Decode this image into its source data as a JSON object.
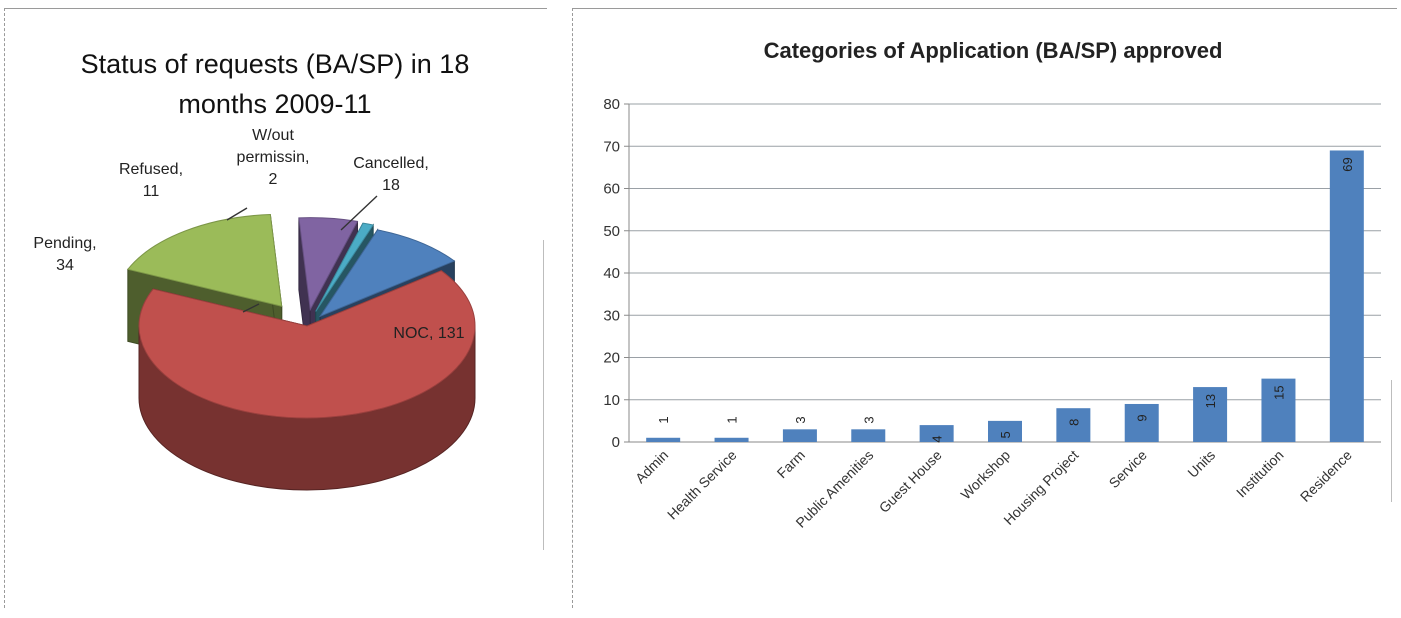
{
  "chart_data": [
    {
      "type": "pie",
      "title": "Status of requests (BA/SP) in 18 months 2009-11",
      "title_lines": [
        "Status of requests (BA/SP) in 18",
        "months 2009-11"
      ],
      "slices": [
        {
          "name": "Cancelled",
          "value": 18,
          "label": [
            "Cancelled,",
            "18"
          ],
          "color": "#4f81bd"
        },
        {
          "name": "NOC",
          "value": 131,
          "label": [
            "NOC, 131"
          ],
          "color": "#c0504d"
        },
        {
          "name": "Pending",
          "value": 34,
          "label": [
            "Pending,",
            "34"
          ],
          "color": "#9bbb59"
        },
        {
          "name": "Refused",
          "value": 11,
          "label": [
            "Refused,",
            "11"
          ],
          "color": "#8064a2"
        },
        {
          "name": "W/out permissin",
          "value": 2,
          "label": [
            "W/out",
            "permissin,",
            "2"
          ],
          "color": "#4bacc6"
        }
      ]
    },
    {
      "type": "bar",
      "title": "Categories of Application  (BA/SP) approved",
      "categories": [
        "Admin",
        "Health Service",
        "Farm",
        "Public Amenities",
        "Guest House",
        "Workshop",
        "Housing Project",
        "Service",
        "Units",
        "Institution",
        "Residence"
      ],
      "values": [
        1,
        1,
        3,
        3,
        4,
        5,
        8,
        9,
        13,
        15,
        69
      ],
      "ylim": [
        0,
        80
      ],
      "yticks": [
        0,
        10,
        20,
        30,
        40,
        50,
        60,
        70,
        80
      ],
      "grid": true,
      "legend": "none",
      "color": "#4f81bd"
    }
  ]
}
